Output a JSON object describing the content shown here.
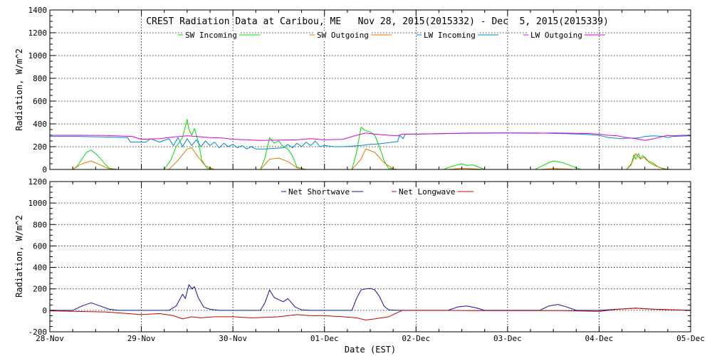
{
  "chart_data": [
    {
      "type": "line",
      "title": "CREST Radiation Data at Caribou, ME   Nov 28, 2015(2015332) - Dec  5, 2015(2015339)",
      "ylabel": "Radiation, W/m^2",
      "ylim": [
        0,
        1400
      ],
      "yticks": [
        0,
        200,
        400,
        600,
        800,
        1000,
        1200,
        1400
      ],
      "xlim": [
        0,
        7
      ],
      "grid": true,
      "legend_position": "top",
      "series": [
        {
          "name": "SW Incoming",
          "color": "#00dd00",
          "x": [
            0.0,
            0.25,
            0.3,
            0.35,
            0.4,
            0.45,
            0.5,
            0.55,
            0.6,
            0.65,
            0.75,
            1.0,
            1.25,
            1.32,
            1.38,
            1.45,
            1.5,
            1.52,
            1.55,
            1.58,
            1.62,
            1.66,
            1.72,
            1.8,
            2.0,
            2.3,
            2.35,
            2.4,
            2.45,
            2.5,
            2.55,
            2.6,
            2.65,
            2.7,
            2.8,
            3.0,
            3.3,
            3.35,
            3.4,
            3.45,
            3.5,
            3.55,
            3.6,
            3.65,
            3.7,
            3.8,
            4.0,
            4.3,
            4.4,
            4.5,
            4.55,
            4.62,
            4.75,
            5.0,
            5.3,
            5.4,
            5.5,
            5.6,
            5.7,
            5.8,
            6.0,
            6.3,
            6.35,
            6.38,
            6.4,
            6.43,
            6.45,
            6.48,
            6.52,
            6.58,
            6.65,
            6.75,
            7.0
          ],
          "values": [
            0,
            0,
            30,
            90,
            150,
            170,
            140,
            100,
            50,
            10,
            0,
            0,
            0,
            80,
            200,
            280,
            440,
            350,
            300,
            360,
            250,
            80,
            10,
            0,
            0,
            0,
            100,
            280,
            230,
            250,
            200,
            180,
            120,
            20,
            0,
            0,
            0,
            150,
            370,
            340,
            330,
            300,
            200,
            80,
            10,
            0,
            0,
            0,
            30,
            50,
            35,
            40,
            0,
            0,
            0,
            40,
            75,
            60,
            30,
            0,
            0,
            0,
            40,
            130,
            90,
            140,
            100,
            120,
            80,
            60,
            20,
            0,
            0
          ]
        },
        {
          "name": "SW Outgoing",
          "color": "#e07800",
          "x": [
            0.0,
            0.25,
            0.35,
            0.45,
            0.55,
            0.65,
            0.75,
            1.0,
            1.3,
            1.4,
            1.5,
            1.55,
            1.62,
            1.7,
            1.8,
            2.0,
            2.3,
            2.4,
            2.5,
            2.6,
            2.7,
            2.8,
            3.0,
            3.3,
            3.4,
            3.45,
            3.55,
            3.65,
            3.75,
            3.8,
            4.0,
            4.35,
            4.5,
            4.65,
            4.75,
            5.0,
            5.35,
            5.5,
            5.65,
            5.75,
            6.0,
            6.3,
            6.36,
            6.4,
            6.45,
            6.5,
            6.55,
            6.62,
            6.7,
            6.8,
            7.0
          ],
          "values": [
            0,
            0,
            50,
            75,
            40,
            5,
            0,
            0,
            0,
            80,
            180,
            190,
            110,
            30,
            0,
            0,
            0,
            90,
            100,
            70,
            15,
            0,
            0,
            0,
            90,
            180,
            150,
            60,
            5,
            0,
            0,
            0,
            10,
            5,
            0,
            0,
            0,
            8,
            4,
            0,
            0,
            0,
            60,
            140,
            90,
            110,
            60,
            30,
            5,
            0,
            0
          ]
        },
        {
          "name": "LW Incoming",
          "color": "#0088cc",
          "x": [
            0.0,
            0.3,
            0.6,
            0.85,
            0.88,
            1.05,
            1.1,
            1.2,
            1.3,
            1.35,
            1.4,
            1.45,
            1.5,
            1.55,
            1.6,
            1.65,
            1.7,
            1.75,
            1.8,
            1.85,
            1.9,
            1.95,
            2.0,
            2.05,
            2.1,
            2.15,
            2.2,
            2.25,
            2.35,
            2.45,
            2.55,
            2.6,
            2.65,
            2.7,
            2.75,
            2.8,
            2.85,
            2.9,
            2.95,
            3.0,
            3.1,
            3.2,
            3.3,
            3.4,
            3.5,
            3.6,
            3.7,
            3.8,
            3.82,
            3.86,
            3.88,
            4.0,
            4.3,
            4.6,
            5.0,
            5.3,
            5.6,
            5.8,
            6.0,
            6.1,
            6.25,
            6.3,
            6.4,
            6.45,
            6.5,
            6.6,
            6.7,
            6.75,
            6.8,
            7.0
          ],
          "values": [
            290,
            290,
            285,
            280,
            240,
            240,
            270,
            240,
            270,
            210,
            280,
            200,
            270,
            210,
            260,
            200,
            250,
            210,
            240,
            190,
            230,
            200,
            220,
            190,
            210,
            180,
            200,
            180,
            180,
            185,
            190,
            220,
            190,
            230,
            200,
            240,
            210,
            250,
            200,
            210,
            200,
            200,
            205,
            210,
            220,
            225,
            235,
            245,
            300,
            270,
            310,
            310,
            315,
            320,
            320,
            320,
            315,
            310,
            300,
            280,
            270,
            275,
            275,
            280,
            290,
            295,
            290,
            280,
            290,
            295
          ]
        },
        {
          "name": "LW Outgoing",
          "color": "#dd00dd",
          "x": [
            0.0,
            0.3,
            0.6,
            0.9,
            1.0,
            1.2,
            1.35,
            1.5,
            1.6,
            1.75,
            1.9,
            2.0,
            2.15,
            2.3,
            2.5,
            2.7,
            2.85,
            3.0,
            3.2,
            3.35,
            3.45,
            3.55,
            3.7,
            3.8,
            3.85,
            4.0,
            4.3,
            4.6,
            5.0,
            5.3,
            5.5,
            5.7,
            5.9,
            6.0,
            6.1,
            6.2,
            6.3,
            6.4,
            6.5,
            6.6,
            6.75,
            6.8,
            6.9,
            7.0
          ],
          "values": [
            300,
            300,
            298,
            290,
            265,
            270,
            285,
            295,
            290,
            280,
            275,
            265,
            260,
            255,
            258,
            260,
            270,
            260,
            265,
            300,
            320,
            310,
            300,
            295,
            310,
            310,
            315,
            318,
            320,
            318,
            320,
            318,
            315,
            310,
            300,
            295,
            280,
            270,
            255,
            270,
            300,
            295,
            300,
            300
          ]
        }
      ]
    },
    {
      "type": "line",
      "xlabel": "Date (EST)",
      "ylabel": "Radiation, W/m^2",
      "ylim": [
        -200,
        1200
      ],
      "yticks": [
        -200,
        0,
        200,
        400,
        600,
        800,
        1000,
        1200
      ],
      "xlim": [
        0,
        7
      ],
      "xtick_labels": [
        "28-Nov",
        "29-Nov",
        "30-Nov",
        "01-Dec",
        "02-Dec",
        "03-Dec",
        "04-Dec",
        "05-Dec"
      ],
      "grid": true,
      "legend_position": "top",
      "series": [
        {
          "name": "Net Shortwave",
          "color": "#1010aa",
          "x": [
            0.0,
            0.25,
            0.35,
            0.45,
            0.55,
            0.65,
            0.75,
            1.0,
            1.3,
            1.38,
            1.45,
            1.48,
            1.52,
            1.55,
            1.58,
            1.62,
            1.68,
            1.75,
            1.85,
            2.0,
            2.3,
            2.35,
            2.4,
            2.45,
            2.5,
            2.55,
            2.6,
            2.68,
            2.75,
            2.85,
            3.0,
            3.3,
            3.35,
            3.4,
            3.45,
            3.5,
            3.55,
            3.6,
            3.65,
            3.7,
            3.8,
            4.0,
            4.35,
            4.45,
            4.55,
            4.65,
            4.75,
            5.0,
            5.35,
            5.45,
            5.55,
            5.65,
            5.75,
            6.0,
            6.2,
            6.4,
            6.6,
            6.8,
            7.0
          ],
          "values": [
            0,
            0,
            40,
            70,
            40,
            10,
            0,
            0,
            0,
            40,
            150,
            110,
            240,
            200,
            220,
            120,
            30,
            10,
            0,
            0,
            0,
            70,
            190,
            120,
            100,
            80,
            110,
            30,
            5,
            0,
            0,
            0,
            110,
            190,
            200,
            205,
            190,
            130,
            40,
            5,
            0,
            0,
            0,
            30,
            40,
            25,
            0,
            0,
            0,
            40,
            55,
            30,
            0,
            0,
            10,
            20,
            10,
            5,
            0
          ]
        },
        {
          "name": "Net Longwave",
          "color": "#cc0000",
          "x": [
            0.0,
            0.3,
            0.6,
            0.85,
            1.0,
            1.2,
            1.35,
            1.45,
            1.55,
            1.65,
            1.8,
            2.0,
            2.2,
            2.35,
            2.5,
            2.7,
            2.85,
            3.0,
            3.2,
            3.35,
            3.45,
            3.55,
            3.7,
            3.8,
            3.85,
            4.0,
            4.3,
            4.6,
            5.0,
            5.3,
            5.6,
            6.0,
            6.2,
            6.4,
            6.6,
            6.8,
            7.0
          ],
          "values": [
            -5,
            -10,
            -15,
            -30,
            -40,
            -30,
            -50,
            -80,
            -60,
            -70,
            -60,
            -60,
            -70,
            -65,
            -60,
            -40,
            -50,
            -50,
            -60,
            -70,
            -90,
            -80,
            -60,
            -20,
            0,
            0,
            0,
            -3,
            -3,
            -3,
            -3,
            -10,
            10,
            20,
            10,
            5,
            0
          ]
        }
      ]
    }
  ]
}
